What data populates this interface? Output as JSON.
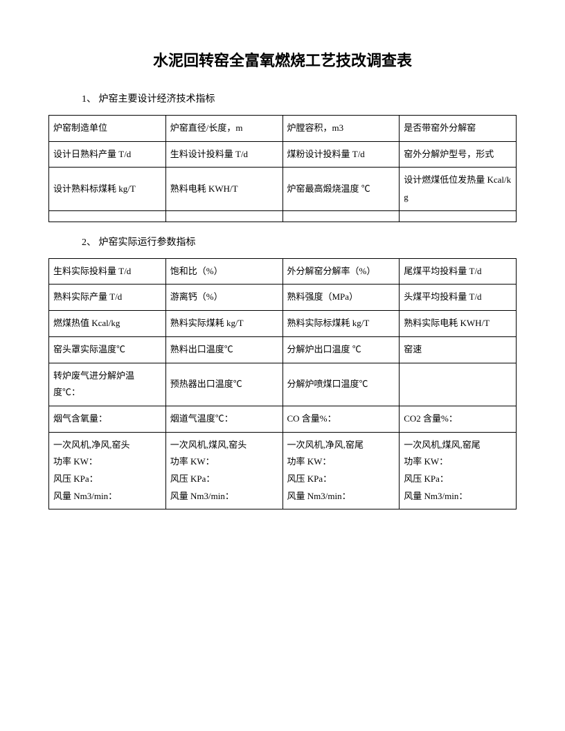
{
  "title": "水泥回转窑全富氧燃烧工艺技改调查表",
  "section1": {
    "header": "1、 炉窑主要设计经济技术指标",
    "rows": [
      [
        "炉窑制造单位",
        "炉窑直径/长度，m",
        "炉膛容积，m3",
        "是否带窑外分解窑"
      ],
      [
        "设计日熟料产量 T/d",
        "生料设计投料量 T/d",
        "煤粉设计投料量 T/d",
        "窑外分解炉型号，形式"
      ],
      [
        "设计熟料标煤耗 kg/T",
        "熟料电耗 KWH/T",
        "炉窑最高煅烧温度 ℃",
        "设计燃煤低位发热量 Kcal/kg"
      ],
      [
        "",
        "",
        "",
        ""
      ]
    ]
  },
  "section2": {
    "header": "2、 炉窑实际运行参数指标",
    "rows": [
      [
        "生料实际投料量 T/d",
        "饱和比（%）",
        "外分解窑分解率（%）",
        "尾煤平均投料量 T/d"
      ],
      [
        "熟料实际产量 T/d",
        "游离钙（%）",
        "熟料强度（MPa）",
        "头煤平均投料量 T/d"
      ],
      [
        "燃煤热值 Kcal/kg",
        "熟料实际煤耗 kg/T",
        "熟料实际标煤耗 kg/T",
        "熟料实际电耗 KWH/T"
      ],
      [
        "窑头罩实际温度℃",
        "熟料出口温度℃",
        "分解炉出口温度 ℃",
        "窑速"
      ],
      [
        "转炉废气进分解炉温度℃：",
        "预热器出口温度℃",
        "分解炉喷煤口温度℃",
        ""
      ],
      [
        "烟气含氧量：",
        "烟道气温度℃：",
        "CO 含量%：",
        "CO2 含量%："
      ],
      [
        "一次风机,净风,窑头\n功率 KW：\n风压 KPa：\n风量 Nm3/min：",
        "一次风机,煤风,窑头\n功率 KW：\n风压 KPa：\n风量 Nm3/min：",
        "一次风机,净风,窑尾\n功率 KW：\n风压 KPa：\n风量 Nm3/min：",
        "一次风机,煤风,窑尾\n功率 KW：\n风压 KPa：\n风量 Nm3/min："
      ]
    ]
  }
}
